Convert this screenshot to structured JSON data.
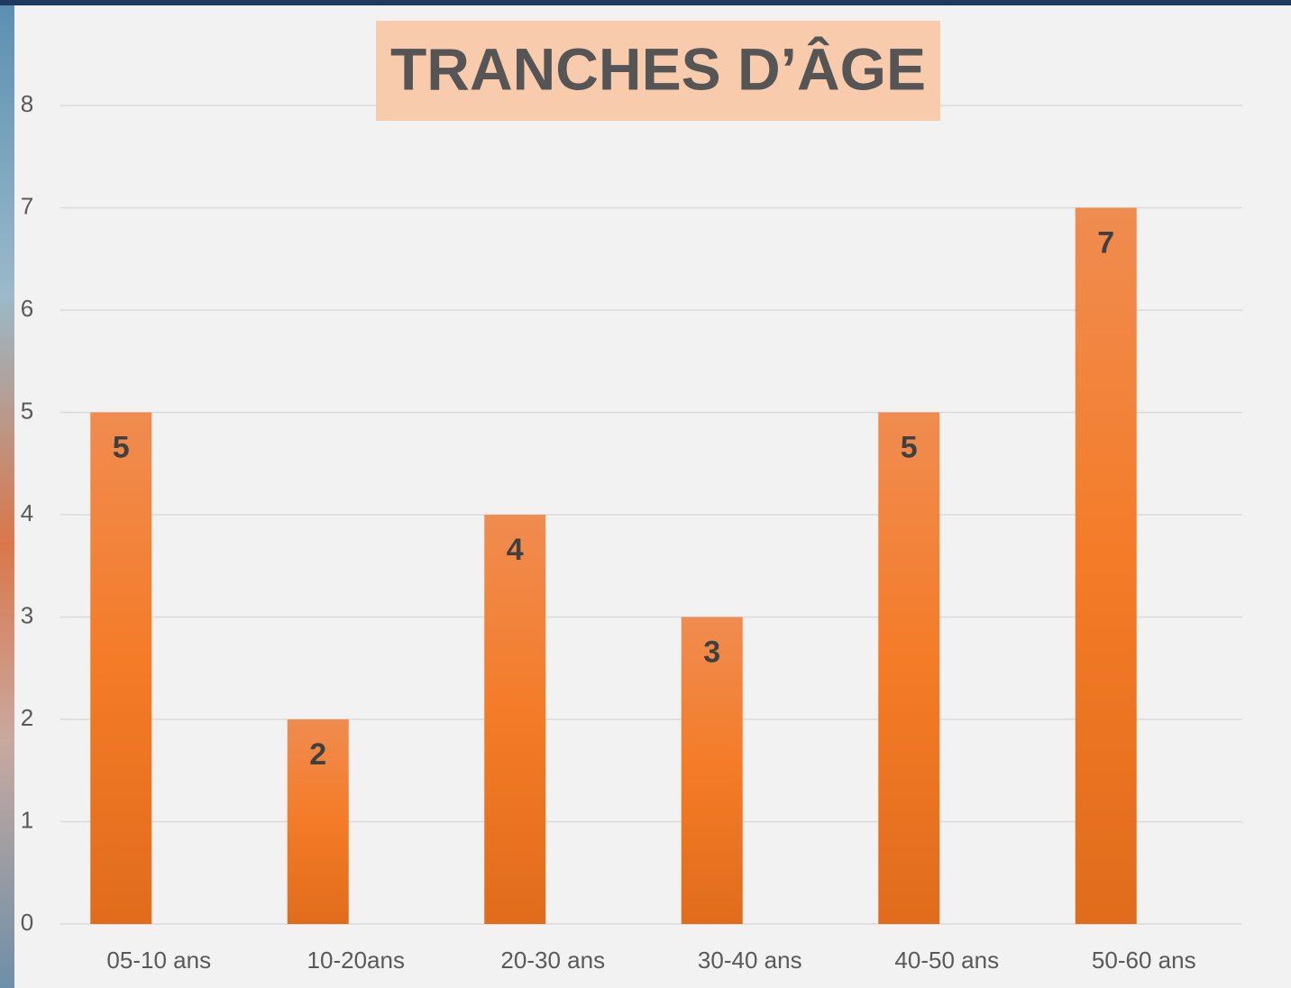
{
  "chart_data": {
    "type": "bar",
    "title": "TRANCHES D’ÂGE",
    "categories": [
      "05-10 ans",
      "10-20ans",
      "20-30 ans",
      "30-40 ans",
      "40-50 ans",
      "50-60 ans"
    ],
    "values": [
      5,
      2,
      4,
      3,
      5,
      7
    ],
    "color": "#f47b27",
    "ylim": [
      0,
      8
    ],
    "yticks": [
      0,
      1,
      2,
      3,
      4,
      5,
      6,
      7,
      8
    ],
    "grid": true,
    "data_labels": true
  }
}
